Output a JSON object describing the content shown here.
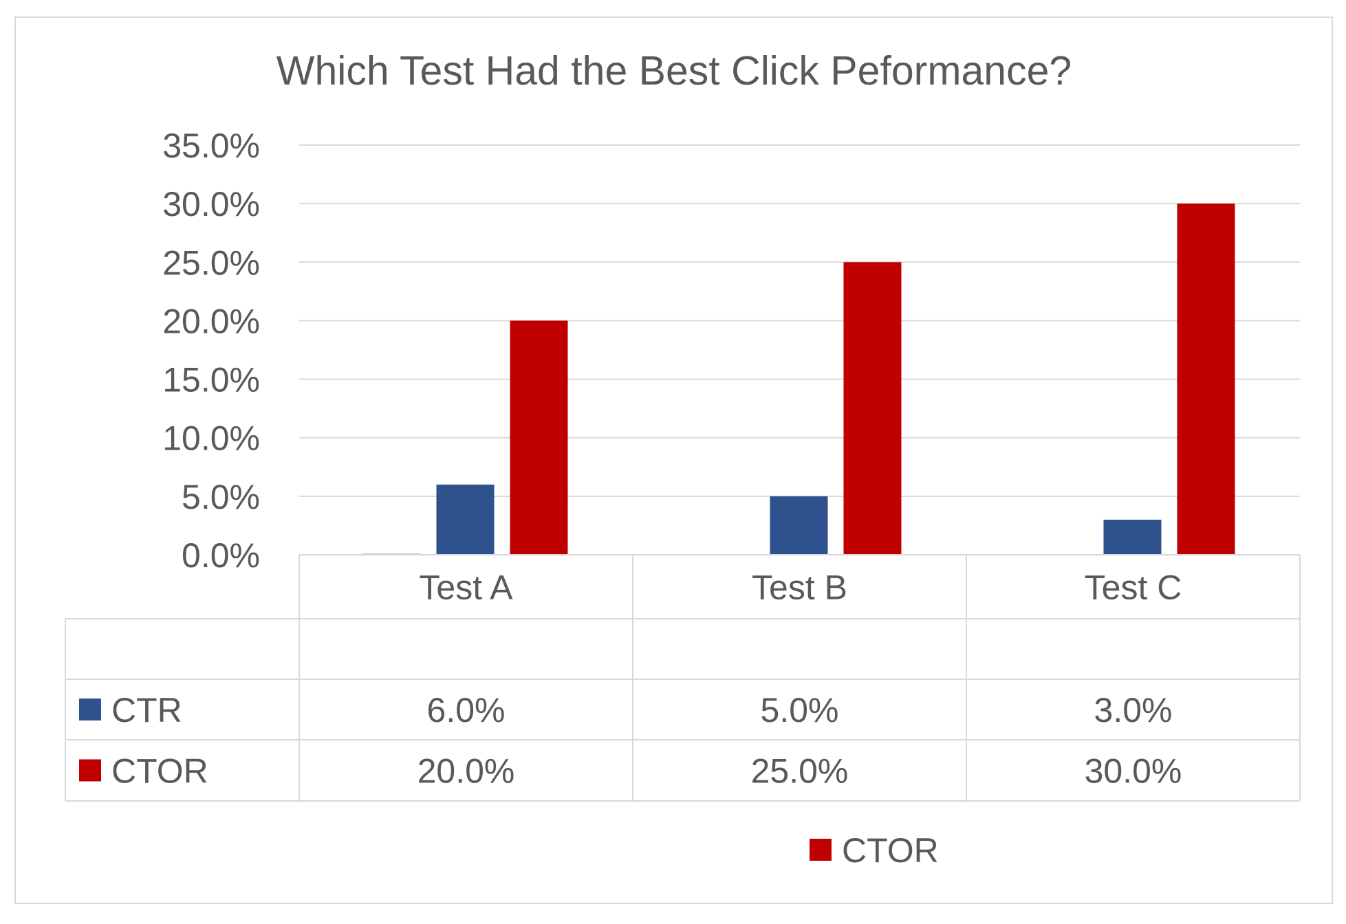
{
  "chart_data": {
    "type": "bar",
    "title": "Which Test Had the Best Click Peformance?",
    "xlabel": "",
    "ylabel": "",
    "categories": [
      "Test A",
      "Test B",
      "Test C"
    ],
    "ylim": [
      0,
      35
    ],
    "y_ticks": [
      "0.0%",
      "5.0%",
      "10.0%",
      "15.0%",
      "20.0%",
      "25.0%",
      "30.0%",
      "35.0%"
    ],
    "grid": true,
    "legend_position": "bottom",
    "series": [
      {
        "name": "",
        "values": [
          0.1,
          0.0,
          0.05
        ],
        "color": "#a5a5a5"
      },
      {
        "name": "CTR",
        "values": [
          6.0,
          5.0,
          3.0
        ],
        "labels": [
          "6.0%",
          "5.0%",
          "3.0%"
        ],
        "color": "#2f528f"
      },
      {
        "name": "CTOR",
        "values": [
          20.0,
          25.0,
          30.0
        ],
        "labels": [
          "20.0%",
          "25.0%",
          "30.0%"
        ],
        "color": "#c00000"
      }
    ],
    "legend": [
      {
        "name": "CTOR",
        "color": "#c00000"
      }
    ]
  }
}
